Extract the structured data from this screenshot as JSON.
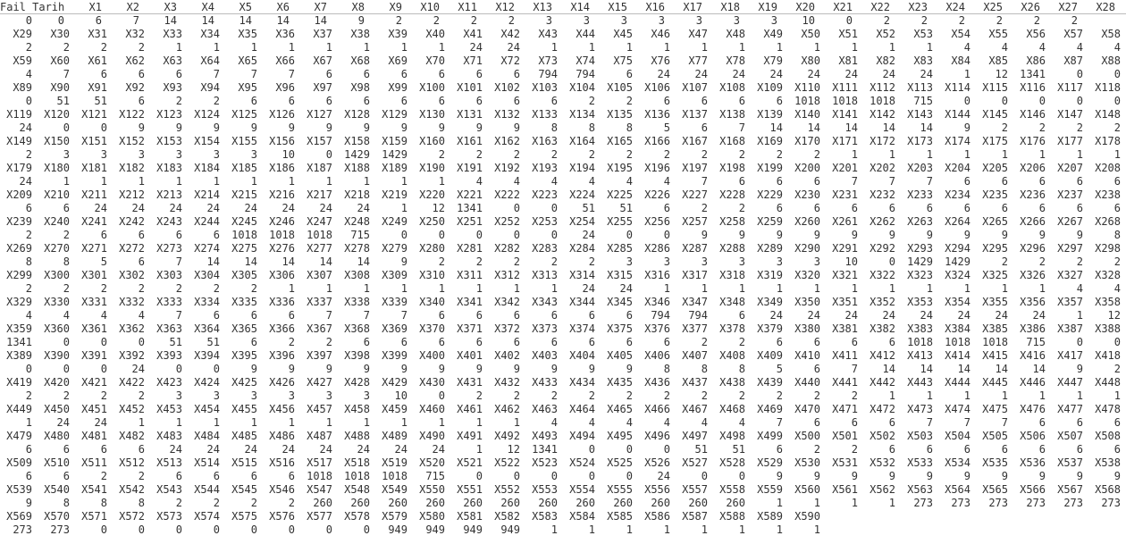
{
  "title": "R console print output",
  "columns": 29,
  "rows": [
    {
      "kind": "header",
      "cells": [
        "Fail Tarih",
        "X1",
        "X2",
        "X3",
        "X4",
        "X5",
        "X6",
        "X7",
        "X8",
        "X9",
        "X10",
        "X11",
        "X12",
        "X13",
        "X14",
        "X15",
        "X16",
        "X17",
        "X18",
        "X19",
        "X20",
        "X21",
        "X22",
        "X23",
        "X24",
        "X25",
        "X26",
        "X27",
        "X28"
      ]
    },
    {
      "kind": "value",
      "cells": [
        "0",
        "0",
        "6",
        "7",
        "14",
        "14",
        "14",
        "14",
        "14",
        "9",
        "2",
        "2",
        "2",
        "2",
        "3",
        "3",
        "3",
        "3",
        "3",
        "3",
        "3",
        "10",
        "0",
        "2",
        "2",
        "2",
        "2",
        "2",
        "2"
      ]
    },
    {
      "kind": "header",
      "cells": [
        "X29",
        "X30",
        "X31",
        "X32",
        "X33",
        "X34",
        "X35",
        "X36",
        "X37",
        "X38",
        "X39",
        "X40",
        "X41",
        "X42",
        "X43",
        "X44",
        "X45",
        "X46",
        "X47",
        "X48",
        "X49",
        "X50",
        "X51",
        "X52",
        "X53",
        "X54",
        "X55",
        "X56",
        "X57",
        "X58"
      ]
    },
    {
      "kind": "value",
      "cells": [
        "2",
        "2",
        "2",
        "2",
        "1",
        "1",
        "1",
        "1",
        "1",
        "1",
        "1",
        "1",
        "24",
        "24",
        "1",
        "1",
        "1",
        "1",
        "1",
        "1",
        "1",
        "1",
        "1",
        "1",
        "1",
        "4",
        "4",
        "4",
        "4",
        "4"
      ]
    },
    {
      "kind": "header",
      "cells": [
        "X59",
        "X60",
        "X61",
        "X62",
        "X63",
        "X64",
        "X65",
        "X66",
        "X67",
        "X68",
        "X69",
        "X70",
        "X71",
        "X72",
        "X73",
        "X74",
        "X75",
        "X76",
        "X77",
        "X78",
        "X79",
        "X80",
        "X81",
        "X82",
        "X83",
        "X84",
        "X85",
        "X86",
        "X87",
        "X88"
      ]
    },
    {
      "kind": "value",
      "cells": [
        "4",
        "7",
        "6",
        "6",
        "6",
        "7",
        "7",
        "7",
        "6",
        "6",
        "6",
        "6",
        "6",
        "6",
        "794",
        "794",
        "6",
        "24",
        "24",
        "24",
        "24",
        "24",
        "24",
        "24",
        "24",
        "1",
        "12",
        "1341",
        "0",
        "0"
      ]
    },
    {
      "kind": "header",
      "cells": [
        "X89",
        "X90",
        "X91",
        "X92",
        "X93",
        "X94",
        "X95",
        "X96",
        "X97",
        "X98",
        "X99",
        "X100",
        "X101",
        "X102",
        "X103",
        "X104",
        "X105",
        "X106",
        "X107",
        "X108",
        "X109",
        "X110",
        "X111",
        "X112",
        "X113",
        "X114",
        "X115",
        "X116",
        "X117",
        "X118"
      ]
    },
    {
      "kind": "value",
      "cells": [
        "0",
        "51",
        "51",
        "6",
        "2",
        "2",
        "6",
        "6",
        "6",
        "6",
        "6",
        "6",
        "6",
        "6",
        "6",
        "2",
        "2",
        "6",
        "6",
        "6",
        "6",
        "1018",
        "1018",
        "1018",
        "715",
        "0",
        "0",
        "0",
        "0",
        "0"
      ]
    },
    {
      "kind": "header",
      "cells": [
        "X119",
        "X120",
        "X121",
        "X122",
        "X123",
        "X124",
        "X125",
        "X126",
        "X127",
        "X128",
        "X129",
        "X130",
        "X131",
        "X132",
        "X133",
        "X134",
        "X135",
        "X136",
        "X137",
        "X138",
        "X139",
        "X140",
        "X141",
        "X142",
        "X143",
        "X144",
        "X145",
        "X146",
        "X147",
        "X148"
      ]
    },
    {
      "kind": "value",
      "cells": [
        "24",
        "0",
        "0",
        "9",
        "9",
        "9",
        "9",
        "9",
        "9",
        "9",
        "9",
        "9",
        "9",
        "9",
        "8",
        "8",
        "8",
        "5",
        "6",
        "7",
        "14",
        "14",
        "14",
        "14",
        "14",
        "9",
        "2",
        "2",
        "2",
        "2"
      ]
    },
    {
      "kind": "header",
      "cells": [
        "X149",
        "X150",
        "X151",
        "X152",
        "X153",
        "X154",
        "X155",
        "X156",
        "X157",
        "X158",
        "X159",
        "X160",
        "X161",
        "X162",
        "X163",
        "X164",
        "X165",
        "X166",
        "X167",
        "X168",
        "X169",
        "X170",
        "X171",
        "X172",
        "X173",
        "X174",
        "X175",
        "X176",
        "X177",
        "X178"
      ]
    },
    {
      "kind": "value",
      "cells": [
        "2",
        "3",
        "3",
        "3",
        "3",
        "3",
        "3",
        "10",
        "0",
        "1429",
        "1429",
        "2",
        "2",
        "2",
        "2",
        "2",
        "2",
        "2",
        "2",
        "2",
        "2",
        "2",
        "1",
        "1",
        "1",
        "1",
        "1",
        "1",
        "1",
        "1"
      ]
    },
    {
      "kind": "header",
      "cells": [
        "X179",
        "X180",
        "X181",
        "X182",
        "X183",
        "X184",
        "X185",
        "X186",
        "X187",
        "X188",
        "X189",
        "X190",
        "X191",
        "X192",
        "X193",
        "X194",
        "X195",
        "X196",
        "X197",
        "X198",
        "X199",
        "X200",
        "X201",
        "X202",
        "X203",
        "X204",
        "X205",
        "X206",
        "X207",
        "X208"
      ]
    },
    {
      "kind": "value",
      "cells": [
        "24",
        "1",
        "1",
        "1",
        "1",
        "1",
        "1",
        "1",
        "1",
        "1",
        "1",
        "1",
        "4",
        "4",
        "4",
        "4",
        "4",
        "4",
        "7",
        "6",
        "6",
        "6",
        "7",
        "7",
        "7",
        "6",
        "6",
        "6",
        "6",
        "6"
      ]
    },
    {
      "kind": "header",
      "cells": [
        "X209",
        "X210",
        "X211",
        "X212",
        "X213",
        "X214",
        "X215",
        "X216",
        "X217",
        "X218",
        "X219",
        "X220",
        "X221",
        "X222",
        "X223",
        "X224",
        "X225",
        "X226",
        "X227",
        "X228",
        "X229",
        "X230",
        "X231",
        "X232",
        "X233",
        "X234",
        "X235",
        "X236",
        "X237",
        "X238"
      ]
    },
    {
      "kind": "value",
      "cells": [
        "6",
        "6",
        "24",
        "24",
        "24",
        "24",
        "24",
        "24",
        "24",
        "24",
        "1",
        "12",
        "1341",
        "0",
        "0",
        "51",
        "51",
        "6",
        "2",
        "2",
        "6",
        "6",
        "6",
        "6",
        "6",
        "6",
        "6",
        "6",
        "6",
        "6"
      ]
    },
    {
      "kind": "header",
      "cells": [
        "X239",
        "X240",
        "X241",
        "X242",
        "X243",
        "X244",
        "X245",
        "X246",
        "X247",
        "X248",
        "X249",
        "X250",
        "X251",
        "X252",
        "X253",
        "X254",
        "X255",
        "X256",
        "X257",
        "X258",
        "X259",
        "X260",
        "X261",
        "X262",
        "X263",
        "X264",
        "X265",
        "X266",
        "X267",
        "X268"
      ]
    },
    {
      "kind": "value",
      "cells": [
        "2",
        "2",
        "6",
        "6",
        "6",
        "6",
        "1018",
        "1018",
        "1018",
        "715",
        "0",
        "0",
        "0",
        "0",
        "0",
        "24",
        "0",
        "0",
        "9",
        "9",
        "9",
        "9",
        "9",
        "9",
        "9",
        "9",
        "9",
        "9",
        "9",
        "8"
      ]
    },
    {
      "kind": "header",
      "cells": [
        "X269",
        "X270",
        "X271",
        "X272",
        "X273",
        "X274",
        "X275",
        "X276",
        "X277",
        "X278",
        "X279",
        "X280",
        "X281",
        "X282",
        "X283",
        "X284",
        "X285",
        "X286",
        "X287",
        "X288",
        "X289",
        "X290",
        "X291",
        "X292",
        "X293",
        "X294",
        "X295",
        "X296",
        "X297",
        "X298"
      ]
    },
    {
      "kind": "value",
      "cells": [
        "8",
        "8",
        "5",
        "6",
        "7",
        "14",
        "14",
        "14",
        "14",
        "14",
        "9",
        "2",
        "2",
        "2",
        "2",
        "2",
        "3",
        "3",
        "3",
        "3",
        "3",
        "3",
        "10",
        "0",
        "1429",
        "1429",
        "2",
        "2",
        "2",
        "2"
      ]
    },
    {
      "kind": "header",
      "cells": [
        "X299",
        "X300",
        "X301",
        "X302",
        "X303",
        "X304",
        "X305",
        "X306",
        "X307",
        "X308",
        "X309",
        "X310",
        "X311",
        "X312",
        "X313",
        "X314",
        "X315",
        "X316",
        "X317",
        "X318",
        "X319",
        "X320",
        "X321",
        "X322",
        "X323",
        "X324",
        "X325",
        "X326",
        "X327",
        "X328"
      ]
    },
    {
      "kind": "value",
      "cells": [
        "2",
        "2",
        "2",
        "2",
        "2",
        "2",
        "2",
        "1",
        "1",
        "1",
        "1",
        "1",
        "1",
        "1",
        "1",
        "24",
        "24",
        "1",
        "1",
        "1",
        "1",
        "1",
        "1",
        "1",
        "1",
        "1",
        "1",
        "1",
        "4",
        "4"
      ]
    },
    {
      "kind": "header",
      "cells": [
        "X329",
        "X330",
        "X331",
        "X332",
        "X333",
        "X334",
        "X335",
        "X336",
        "X337",
        "X338",
        "X339",
        "X340",
        "X341",
        "X342",
        "X343",
        "X344",
        "X345",
        "X346",
        "X347",
        "X348",
        "X349",
        "X350",
        "X351",
        "X352",
        "X353",
        "X354",
        "X355",
        "X356",
        "X357",
        "X358"
      ]
    },
    {
      "kind": "value",
      "cells": [
        "4",
        "4",
        "4",
        "4",
        "7",
        "6",
        "6",
        "6",
        "7",
        "7",
        "7",
        "6",
        "6",
        "6",
        "6",
        "6",
        "6",
        "794",
        "794",
        "6",
        "24",
        "24",
        "24",
        "24",
        "24",
        "24",
        "24",
        "24",
        "1",
        "12"
      ]
    },
    {
      "kind": "header",
      "cells": [
        "X359",
        "X360",
        "X361",
        "X362",
        "X363",
        "X364",
        "X365",
        "X366",
        "X367",
        "X368",
        "X369",
        "X370",
        "X371",
        "X372",
        "X373",
        "X374",
        "X375",
        "X376",
        "X377",
        "X378",
        "X379",
        "X380",
        "X381",
        "X382",
        "X383",
        "X384",
        "X385",
        "X386",
        "X387",
        "X388"
      ]
    },
    {
      "kind": "value",
      "cells": [
        "1341",
        "0",
        "0",
        "0",
        "51",
        "51",
        "6",
        "2",
        "2",
        "6",
        "6",
        "6",
        "6",
        "6",
        "6",
        "6",
        "6",
        "6",
        "2",
        "2",
        "6",
        "6",
        "6",
        "6",
        "1018",
        "1018",
        "1018",
        "715",
        "0",
        "0"
      ]
    },
    {
      "kind": "header",
      "cells": [
        "X389",
        "X390",
        "X391",
        "X392",
        "X393",
        "X394",
        "X395",
        "X396",
        "X397",
        "X398",
        "X399",
        "X400",
        "X401",
        "X402",
        "X403",
        "X404",
        "X405",
        "X406",
        "X407",
        "X408",
        "X409",
        "X410",
        "X411",
        "X412",
        "X413",
        "X414",
        "X415",
        "X416",
        "X417",
        "X418"
      ]
    },
    {
      "kind": "value",
      "cells": [
        "0",
        "0",
        "0",
        "24",
        "0",
        "0",
        "9",
        "9",
        "9",
        "9",
        "9",
        "9",
        "9",
        "9",
        "9",
        "9",
        "9",
        "8",
        "8",
        "8",
        "5",
        "6",
        "7",
        "14",
        "14",
        "14",
        "14",
        "14",
        "9",
        "2"
      ]
    },
    {
      "kind": "header",
      "cells": [
        "X419",
        "X420",
        "X421",
        "X422",
        "X423",
        "X424",
        "X425",
        "X426",
        "X427",
        "X428",
        "X429",
        "X430",
        "X431",
        "X432",
        "X433",
        "X434",
        "X435",
        "X436",
        "X437",
        "X438",
        "X439",
        "X440",
        "X441",
        "X442",
        "X443",
        "X444",
        "X445",
        "X446",
        "X447",
        "X448"
      ]
    },
    {
      "kind": "value",
      "cells": [
        "2",
        "2",
        "2",
        "2",
        "3",
        "3",
        "3",
        "3",
        "3",
        "3",
        "10",
        "0",
        "2",
        "2",
        "2",
        "2",
        "2",
        "2",
        "2",
        "2",
        "2",
        "2",
        "2",
        "1",
        "1",
        "1",
        "1",
        "1",
        "1",
        "1"
      ]
    },
    {
      "kind": "header",
      "cells": [
        "X449",
        "X450",
        "X451",
        "X452",
        "X453",
        "X454",
        "X455",
        "X456",
        "X457",
        "X458",
        "X459",
        "X460",
        "X461",
        "X462",
        "X463",
        "X464",
        "X465",
        "X466",
        "X467",
        "X468",
        "X469",
        "X470",
        "X471",
        "X472",
        "X473",
        "X474",
        "X475",
        "X476",
        "X477",
        "X478"
      ]
    },
    {
      "kind": "value",
      "cells": [
        "1",
        "24",
        "24",
        "1",
        "1",
        "1",
        "1",
        "1",
        "1",
        "1",
        "1",
        "1",
        "1",
        "1",
        "4",
        "4",
        "4",
        "4",
        "4",
        "4",
        "7",
        "6",
        "6",
        "6",
        "7",
        "7",
        "7",
        "6",
        "6",
        "6"
      ]
    },
    {
      "kind": "header",
      "cells": [
        "X479",
        "X480",
        "X481",
        "X482",
        "X483",
        "X484",
        "X485",
        "X486",
        "X487",
        "X488",
        "X489",
        "X490",
        "X491",
        "X492",
        "X493",
        "X494",
        "X495",
        "X496",
        "X497",
        "X498",
        "X499",
        "X500",
        "X501",
        "X502",
        "X503",
        "X504",
        "X505",
        "X506",
        "X507",
        "X508"
      ]
    },
    {
      "kind": "value",
      "cells": [
        "6",
        "6",
        "6",
        "6",
        "24",
        "24",
        "24",
        "24",
        "24",
        "24",
        "24",
        "24",
        "1",
        "12",
        "1341",
        "0",
        "0",
        "0",
        "51",
        "51",
        "6",
        "2",
        "2",
        "6",
        "6",
        "6",
        "6",
        "6",
        "6",
        "6"
      ]
    },
    {
      "kind": "header",
      "cells": [
        "X509",
        "X510",
        "X511",
        "X512",
        "X513",
        "X514",
        "X515",
        "X516",
        "X517",
        "X518",
        "X519",
        "X520",
        "X521",
        "X522",
        "X523",
        "X524",
        "X525",
        "X526",
        "X527",
        "X528",
        "X529",
        "X530",
        "X531",
        "X532",
        "X533",
        "X534",
        "X535",
        "X536",
        "X537",
        "X538"
      ]
    },
    {
      "kind": "value",
      "cells": [
        "6",
        "6",
        "2",
        "2",
        "6",
        "6",
        "6",
        "6",
        "1018",
        "1018",
        "1018",
        "715",
        "0",
        "0",
        "0",
        "0",
        "0",
        "24",
        "0",
        "0",
        "9",
        "9",
        "9",
        "9",
        "9",
        "9",
        "9",
        "9",
        "9",
        "9"
      ]
    },
    {
      "kind": "header",
      "cells": [
        "X539",
        "X540",
        "X541",
        "X542",
        "X543",
        "X544",
        "X545",
        "X546",
        "X547",
        "X548",
        "X549",
        "X550",
        "X551",
        "X552",
        "X553",
        "X554",
        "X555",
        "X556",
        "X557",
        "X558",
        "X559",
        "X560",
        "X561",
        "X562",
        "X563",
        "X564",
        "X565",
        "X566",
        "X567",
        "X568"
      ]
    },
    {
      "kind": "value",
      "cells": [
        "9",
        "8",
        "8",
        "8",
        "2",
        "2",
        "2",
        "2",
        "260",
        "260",
        "260",
        "260",
        "260",
        "260",
        "260",
        "260",
        "260",
        "260",
        "260",
        "260",
        "1",
        "1",
        "1",
        "1",
        "273",
        "273",
        "273",
        "273",
        "273",
        "273"
      ]
    },
    {
      "kind": "header",
      "cells": [
        "X569",
        "X570",
        "X571",
        "X572",
        "X573",
        "X574",
        "X575",
        "X576",
        "X577",
        "X578",
        "X579",
        "X580",
        "X581",
        "X582",
        "X583",
        "X584",
        "X585",
        "X586",
        "X587",
        "X588",
        "X589",
        "X590"
      ]
    },
    {
      "kind": "value",
      "cells": [
        "273",
        "273",
        "0",
        "0",
        "0",
        "0",
        "0",
        "0",
        "0",
        "0",
        "949",
        "949",
        "949",
        "949",
        "1",
        "1",
        "1",
        "1",
        "1",
        "1",
        "1",
        "1"
      ]
    }
  ]
}
